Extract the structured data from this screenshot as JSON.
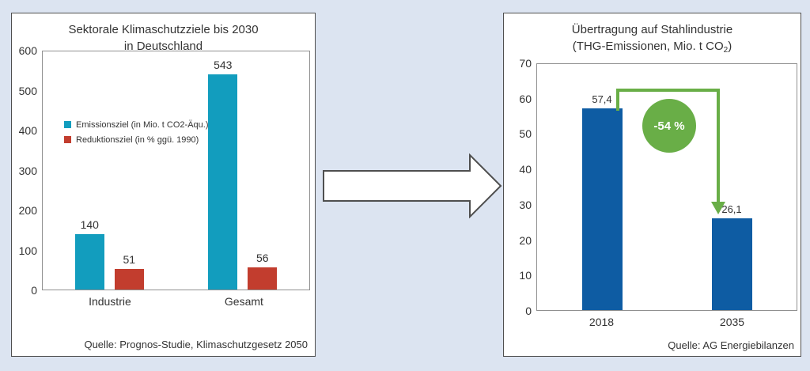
{
  "background_color": "#dce4f1",
  "arrow_fill": "#ffffff",
  "chart_data": [
    {
      "type": "bar",
      "title": "Sektorale Klimaschutzziele bis 2030",
      "title_line2": "in Deutschland",
      "categories": [
        "Industrie",
        "Gesamt"
      ],
      "series": [
        {
          "name": "Emissionsziel (in Mio. t CO2-Äqu.)",
          "color": "#129DBE",
          "values": [
            140,
            543
          ]
        },
        {
          "name": "Reduktionsziel (in % ggü. 1990)",
          "color": "#C23D2E",
          "values": [
            51,
            56
          ]
        }
      ],
      "display_values": [
        [
          "140",
          "51"
        ],
        [
          "543",
          "56"
        ]
      ],
      "ylim": [
        0,
        600
      ],
      "yticks": [
        "600",
        "500",
        "400",
        "300",
        "200",
        "100",
        "0"
      ],
      "grid": false,
      "legend_position": "middle-left",
      "source": "Quelle: Prognos-Studie, Klimaschutzgesetz 2050"
    },
    {
      "type": "bar",
      "title": "Übertragung auf Stahlindustrie",
      "title_line2_pre": "(THG-Emissionen, Mio. t CO",
      "title_line2_sub": "2",
      "title_line2_post": ")",
      "categories": [
        "2018",
        "2035"
      ],
      "series": [
        {
          "color": "#0E5CA3",
          "values": [
            57.4,
            26.1
          ]
        }
      ],
      "display_values": [
        "57,4",
        "26,1"
      ],
      "ylim": [
        0,
        70
      ],
      "yticks": [
        "70",
        "60",
        "50",
        "40",
        "30",
        "20",
        "10",
        "0"
      ],
      "grid": false,
      "annotation": {
        "label": "-54 %",
        "color": "#69AE47"
      },
      "source": "Quelle: AG Energiebilanzen"
    }
  ]
}
